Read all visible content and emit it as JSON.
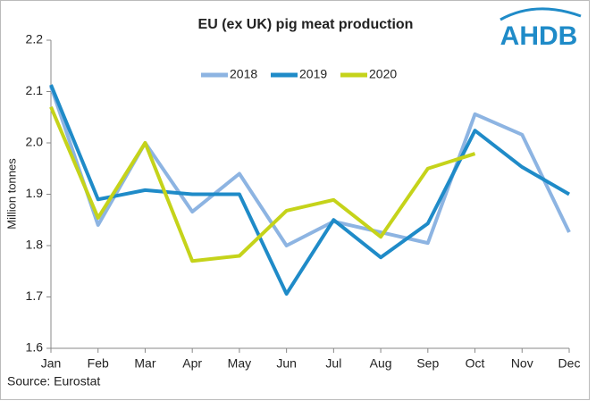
{
  "chart_data": {
    "type": "line",
    "title": "EU (ex UK) pig meat production",
    "logo": "AHDB",
    "y_label": "Million tonnes",
    "source": "Source:  Eurostat",
    "categories": [
      "Jan",
      "Feb",
      "Mar",
      "Apr",
      "May",
      "Jun",
      "Jul",
      "Aug",
      "Sep",
      "Oct",
      "Nov",
      "Dec"
    ],
    "series": [
      {
        "name": "2018",
        "color": "#8db4e2",
        "values": [
          2.11,
          1.84,
          2.0,
          1.866,
          1.94,
          1.8,
          1.847,
          1.826,
          1.805,
          2.056,
          2.016,
          1.826
        ]
      },
      {
        "name": "2019",
        "color": "#1f8bc8",
        "values": [
          2.113,
          1.89,
          1.908,
          1.9,
          1.9,
          1.706,
          1.85,
          1.777,
          1.843,
          2.024,
          1.953,
          1.9
        ]
      },
      {
        "name": "2020",
        "color": "#c5d31a",
        "values": [
          2.07,
          1.854,
          2.0,
          1.77,
          1.78,
          1.868,
          1.889,
          1.817,
          1.95,
          1.979,
          null,
          null
        ]
      }
    ],
    "ylim": [
      1.6,
      2.2
    ],
    "yticks": [
      1.6,
      1.7,
      1.8,
      1.9,
      {
        "value": 2,
        "label": "2.0"
      },
      2.1,
      2.2
    ],
    "grid": false,
    "legend": "top"
  }
}
